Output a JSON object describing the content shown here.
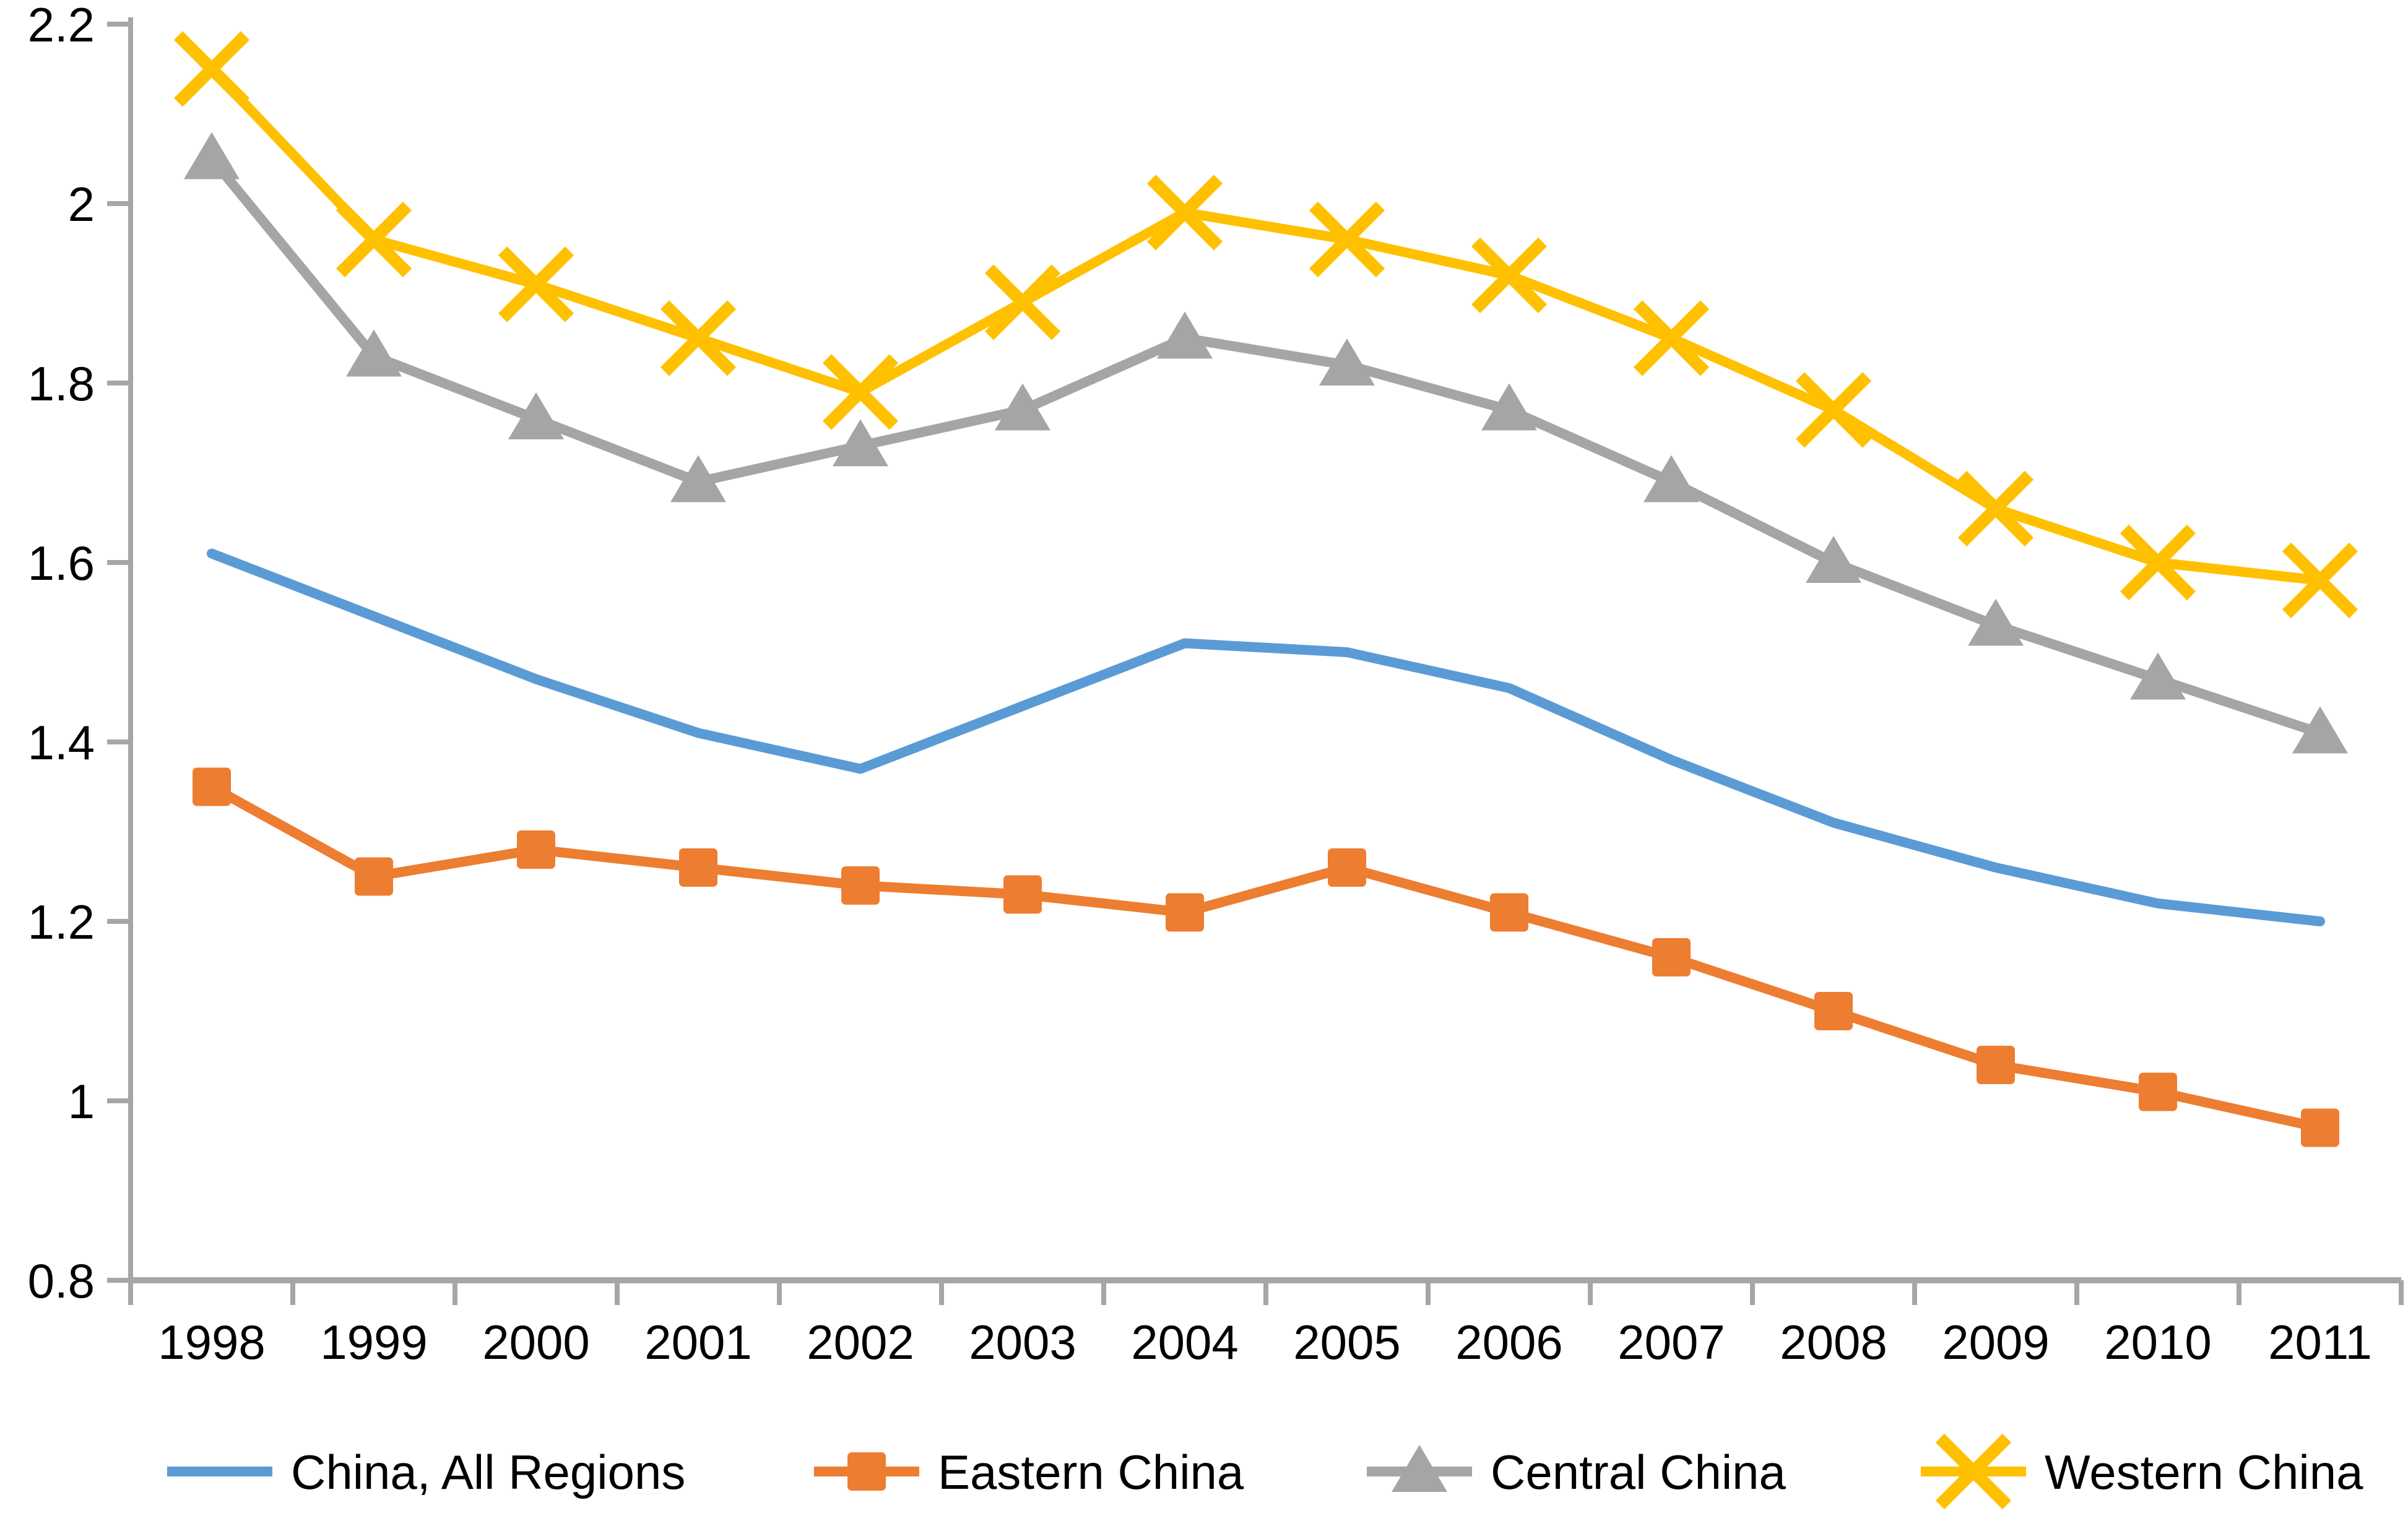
{
  "chart_data": {
    "type": "line",
    "title": "",
    "xlabel": "",
    "ylabel": "",
    "x": [
      "1998",
      "1999",
      "2000",
      "2001",
      "2002",
      "2003",
      "2004",
      "2005",
      "2006",
      "2007",
      "2008",
      "2009",
      "2010",
      "2011"
    ],
    "series": [
      {
        "name": "China, All Regions",
        "color": "#5B9BD5",
        "marker": "none",
        "values": [
          1.61,
          1.54,
          1.47,
          1.41,
          1.37,
          1.44,
          1.51,
          1.5,
          1.46,
          1.38,
          1.31,
          1.26,
          1.22,
          1.2
        ]
      },
      {
        "name": "Eastern China",
        "color": "#ED7D31",
        "marker": "square",
        "values": [
          1.35,
          1.25,
          1.28,
          1.26,
          1.24,
          1.23,
          1.21,
          1.26,
          1.21,
          1.16,
          1.1,
          1.04,
          1.01,
          0.97
        ]
      },
      {
        "name": "Central China",
        "color": "#A5A5A5",
        "marker": "triangle",
        "values": [
          2.05,
          1.83,
          1.76,
          1.69,
          1.73,
          1.77,
          1.85,
          1.82,
          1.77,
          1.69,
          1.6,
          1.53,
          1.47,
          1.41
        ]
      },
      {
        "name": "Western China",
        "color": "#FFC000",
        "marker": "x",
        "values": [
          2.15,
          1.96,
          1.91,
          1.85,
          1.79,
          1.89,
          1.99,
          1.96,
          1.92,
          1.85,
          1.77,
          1.66,
          1.6,
          1.58
        ]
      }
    ],
    "ylim": [
      0.8,
      2.2
    ],
    "yticks": [
      "2.2",
      "2",
      "1.8",
      "1.6",
      "1.4",
      "1.2",
      "1",
      "0.8"
    ],
    "grid": false,
    "legend_position": "bottom",
    "axis_color": "#A6A6A6",
    "text_color": "#000000",
    "background_color": "#FFFFFF"
  }
}
